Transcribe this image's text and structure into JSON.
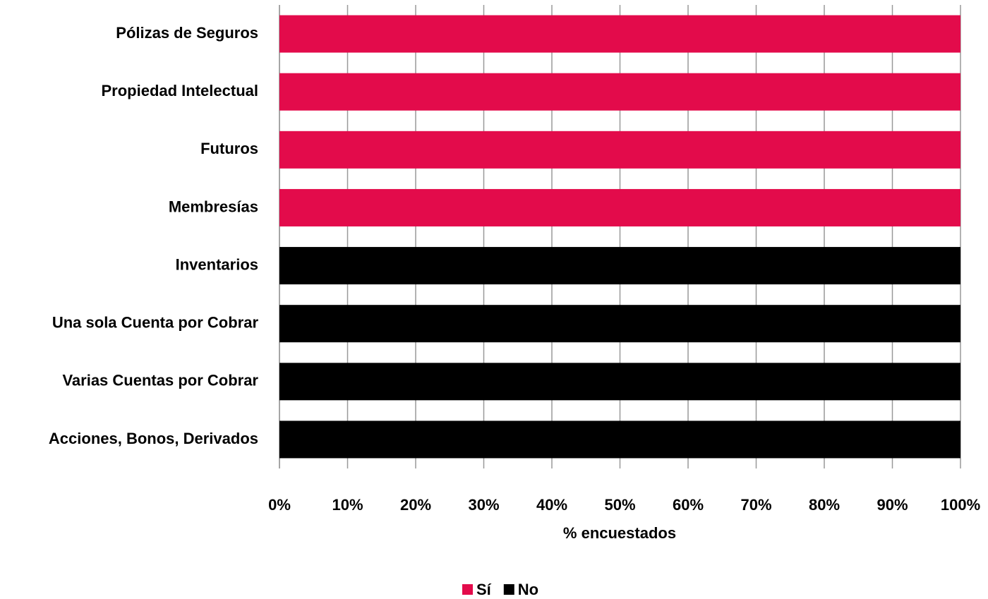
{
  "chart_data": {
    "type": "stacked_barh",
    "categories": [
      "Pólizas de Seguros",
      "Propiedad Intelectual",
      "Futuros",
      "Membresías",
      "Inventarios",
      "Una sola Cuenta por Cobrar",
      "Varias Cuentas por Cobrar",
      "Acciones, Bonos, Derivados"
    ],
    "series": [
      {
        "name": "Sí",
        "color": "#e30b4b",
        "values": [
          100,
          100,
          100,
          100,
          0,
          0,
          0,
          0
        ]
      },
      {
        "name": "No",
        "color": "#000000",
        "values": [
          0,
          0,
          0,
          0,
          100,
          100,
          100,
          100
        ]
      }
    ],
    "xlim": [
      0,
      100
    ],
    "xticks": [
      {
        "value": 0,
        "label": "0%"
      },
      {
        "value": 10,
        "label": "10%"
      },
      {
        "value": 20,
        "label": "20%"
      },
      {
        "value": 30,
        "label": "30%"
      },
      {
        "value": 40,
        "label": "40%"
      },
      {
        "value": 50,
        "label": "50%"
      },
      {
        "value": 60,
        "label": "60%"
      },
      {
        "value": 70,
        "label": "70%"
      },
      {
        "value": 80,
        "label": "80%"
      },
      {
        "value": 90,
        "label": "90%"
      },
      {
        "value": 100,
        "label": "100%"
      }
    ],
    "xlabel": "% encuestados",
    "grid": true,
    "legend": "bottom"
  }
}
